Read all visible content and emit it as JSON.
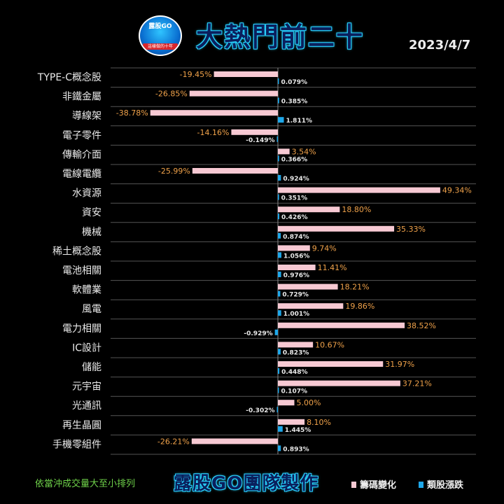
{
  "header": {
    "logo_text": "露股GO",
    "logo_caption": "這樣做的十年",
    "title": "大熱門前二十",
    "date": "2023/4/7"
  },
  "footer": {
    "note": "依當沖成交量大至小排列",
    "team": "露股GO團隊製作",
    "legend": [
      {
        "label": "籌碼變化",
        "color": "#f7c9d3"
      },
      {
        "label": "類股漲跌",
        "color": "#1ea7e9"
      }
    ]
  },
  "chart_data": {
    "type": "bar",
    "orientation": "horizontal",
    "categories": [
      "TYPE-C概念股",
      "非鐵金屬",
      "導線架",
      "電子零件",
      "傳輸介面",
      "電線電纜",
      "水資源",
      "資安",
      "機械",
      "稀土概念股",
      "電池相關",
      "軟體業",
      "風電",
      "電力相關",
      "IC設計",
      "儲能",
      "元宇宙",
      "光通訊",
      "再生晶圓",
      "手機零組件"
    ],
    "series": [
      {
        "name": "籌碼變化",
        "color": "#f7c9d3",
        "values": [
          -19.45,
          -26.85,
          -38.78,
          -14.16,
          3.54,
          -25.99,
          49.34,
          18.8,
          35.33,
          9.74,
          11.41,
          18.21,
          19.86,
          38.52,
          10.67,
          31.97,
          37.21,
          5.0,
          8.1,
          -26.21
        ],
        "labels": [
          "-19.45%",
          "-26.85%",
          "-38.78%",
          "-14.16%",
          "3.54%",
          "-25.99%",
          "49.34%",
          "18.80%",
          "35.33%",
          "9.74%",
          "11.41%",
          "18.21%",
          "19.86%",
          "38.52%",
          "10.67%",
          "31.97%",
          "37.21%",
          "5.00%",
          "8.10%",
          "-26.21%"
        ]
      },
      {
        "name": "類股漲跌",
        "color": "#1ea7e9",
        "values": [
          0.079,
          0.385,
          1.811,
          -0.149,
          0.366,
          0.924,
          0.351,
          0.426,
          0.874,
          1.056,
          0.976,
          0.729,
          1.001,
          -0.929,
          0.823,
          0.448,
          0.107,
          -0.302,
          1.445,
          0.893
        ],
        "labels": [
          "0.079%",
          "0.385%",
          "1.811%",
          "-0.149%",
          "0.366%",
          "0.924%",
          "0.351%",
          "0.426%",
          "0.874%",
          "1.056%",
          "0.976%",
          "0.729%",
          "1.001%",
          "-0.929%",
          "0.823%",
          "0.448%",
          "0.107%",
          "-0.302%",
          "1.445%",
          "0.893%"
        ]
      }
    ],
    "grid": true
  }
}
